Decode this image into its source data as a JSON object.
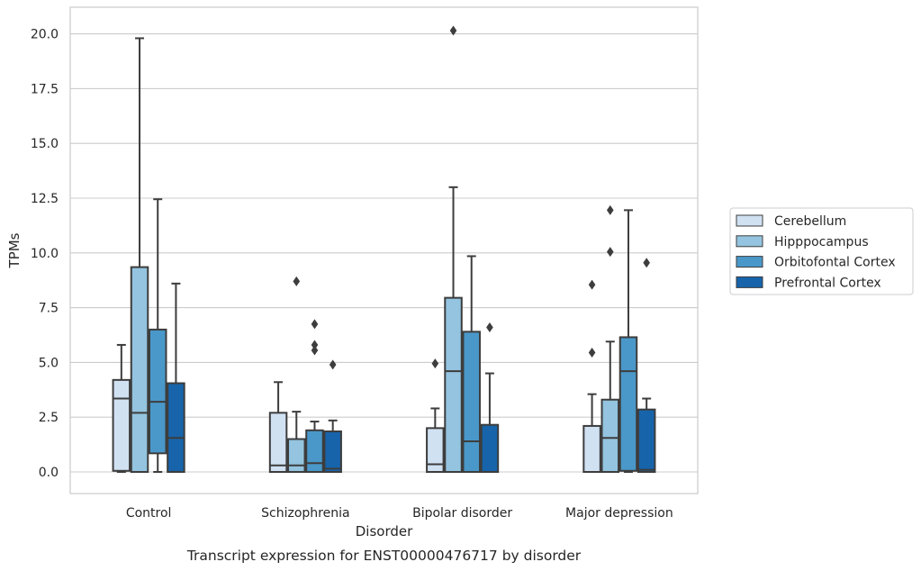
{
  "chart_data": {
    "type": "box",
    "title": "",
    "caption": "Transcript expression for ENST00000476717 by disorder",
    "xlabel": "Disorder",
    "ylabel": "TPMs",
    "ylim": [
      -1.0,
      21.2
    ],
    "yticks": [
      "0.0",
      "2.5",
      "5.0",
      "7.5",
      "10.0",
      "12.5",
      "15.0",
      "17.5",
      "20.0"
    ],
    "ytick_values": [
      0,
      2.5,
      5,
      7.5,
      10,
      12.5,
      15,
      17.5,
      20
    ],
    "grid": true,
    "legend_placement": "right",
    "categories": [
      "Control",
      "Schizophrenia",
      "Bipolar disorder",
      "Major depression"
    ],
    "series": [
      {
        "name": "Cerebellum",
        "color": "#d0e1f2",
        "boxes": [
          {
            "whislo": 0.0,
            "q1": 0.05,
            "med": 3.35,
            "q3": 4.2,
            "whishi": 5.8,
            "fliers": []
          },
          {
            "whislo": 0.0,
            "q1": 0.0,
            "med": 0.3,
            "q3": 2.7,
            "whishi": 4.1,
            "fliers": []
          },
          {
            "whislo": 0.0,
            "q1": 0.0,
            "med": 0.35,
            "q3": 2.0,
            "whishi": 2.9,
            "fliers": [
              4.95
            ]
          },
          {
            "whislo": 0.0,
            "q1": 0.0,
            "med": 0.0,
            "q3": 2.1,
            "whishi": 3.55,
            "fliers": [
              5.45,
              8.55
            ]
          }
        ]
      },
      {
        "name": "Hipppocampus",
        "color": "#94c4df",
        "boxes": [
          {
            "whislo": 0.0,
            "q1": 0.0,
            "med": 2.7,
            "q3": 9.35,
            "whishi": 19.8,
            "fliers": []
          },
          {
            "whislo": 0.0,
            "q1": 0.0,
            "med": 0.3,
            "q3": 1.5,
            "whishi": 2.75,
            "fliers": [
              8.7
            ]
          },
          {
            "whislo": 0.0,
            "q1": 0.0,
            "med": 4.6,
            "q3": 7.95,
            "whishi": 13.0,
            "fliers": [
              20.15
            ]
          },
          {
            "whislo": 0.0,
            "q1": 0.0,
            "med": 1.55,
            "q3": 3.3,
            "whishi": 5.95,
            "fliers": [
              10.05,
              11.95
            ]
          }
        ]
      },
      {
        "name": "Orbitofontal Cortex",
        "color": "#4a98c9",
        "boxes": [
          {
            "whislo": 0.0,
            "q1": 0.85,
            "med": 3.2,
            "q3": 6.5,
            "whishi": 12.45,
            "fliers": []
          },
          {
            "whislo": 0.0,
            "q1": 0.0,
            "med": 0.4,
            "q3": 1.9,
            "whishi": 2.3,
            "fliers": [
              5.55,
              5.8,
              6.75
            ]
          },
          {
            "whislo": 0.0,
            "q1": 0.0,
            "med": 1.4,
            "q3": 6.4,
            "whishi": 9.85,
            "fliers": []
          },
          {
            "whislo": 0.0,
            "q1": 0.05,
            "med": 4.6,
            "q3": 6.15,
            "whishi": 11.95,
            "fliers": []
          }
        ]
      },
      {
        "name": "Prefrontal Cortex",
        "color": "#1764ab",
        "boxes": [
          {
            "whislo": 0.0,
            "q1": 0.0,
            "med": 1.55,
            "q3": 4.05,
            "whishi": 8.6,
            "fliers": []
          },
          {
            "whislo": 0.0,
            "q1": 0.0,
            "med": 0.15,
            "q3": 1.85,
            "whishi": 2.35,
            "fliers": [
              4.9
            ]
          },
          {
            "whislo": 0.0,
            "q1": 0.0,
            "med": 0.0,
            "q3": 2.15,
            "whishi": 4.5,
            "fliers": [
              6.6
            ]
          },
          {
            "whislo": 0.0,
            "q1": 0.0,
            "med": 0.1,
            "q3": 2.85,
            "whishi": 3.35,
            "fliers": [
              9.55
            ]
          }
        ]
      }
    ]
  }
}
